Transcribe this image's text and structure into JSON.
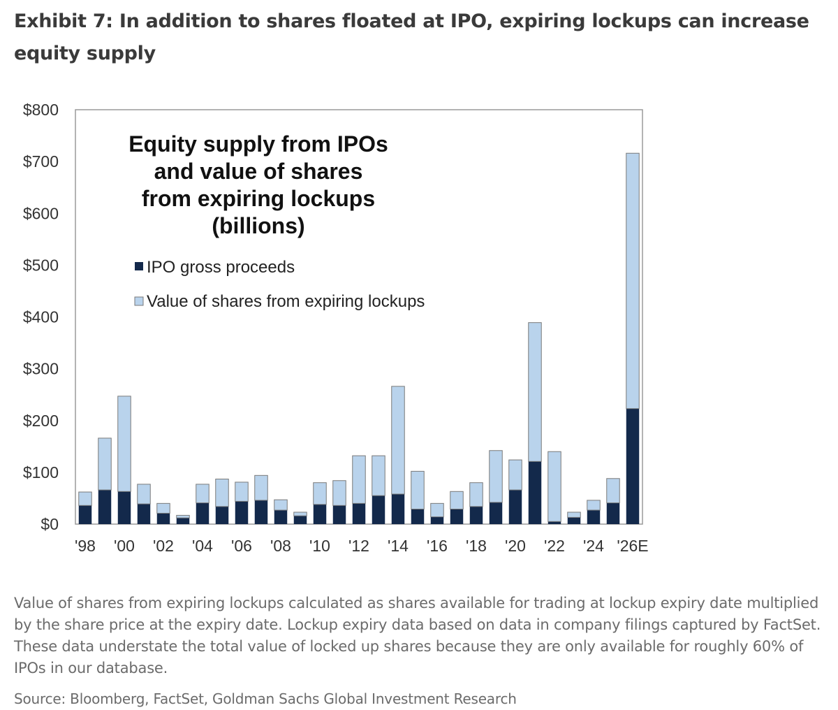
{
  "exhibit": {
    "title": "Exhibit 7: In addition to shares floated at IPO, expiring lockups can increase equity supply",
    "footnote": "Value of shares from expiring lockups calculated as shares available for trading at lockup expiry date multiplied by the share price at the expiry date. Lockup expiry data based on data in company filings captured by FactSet. These data understate the total value of locked up shares because they are only available for roughly 60% of IPOs in our database.",
    "source": "Source: Bloomberg, FactSet, Goldman Sachs Global Investment Research"
  },
  "colors": {
    "ipo": "#13294b",
    "lockup": "#b9d3ec",
    "bar_stroke": "#7a7a7a",
    "axis": "#9a9a9a"
  },
  "chart_data": {
    "type": "bar",
    "stacked": true,
    "title": [
      "Equity supply from IPOs",
      "and value of shares",
      "from expiring lockups",
      "(billions)"
    ],
    "categories": [
      "1998",
      "1999",
      "2000",
      "2001",
      "2002",
      "2003",
      "2004",
      "2005",
      "2006",
      "2007",
      "2008",
      "2009",
      "2010",
      "2011",
      "2012",
      "2013",
      "2014",
      "2015",
      "2016",
      "2017",
      "2018",
      "2019",
      "2020",
      "2021",
      "2022",
      "2023",
      "2024",
      "2025",
      "2026E"
    ],
    "x_tick_labels": [
      "'98",
      "",
      "'00",
      "",
      "'02",
      "",
      "'04",
      "",
      "'06",
      "",
      "'08",
      "",
      "'10",
      "",
      "'12",
      "",
      "'14",
      "",
      "'16",
      "",
      "'18",
      "",
      "'20",
      "",
      "'22",
      "",
      "'24",
      "",
      "'26E"
    ],
    "series": [
      {
        "name": "IPO gross proceeds",
        "values": [
          36,
          66,
          63,
          39,
          21,
          12,
          41,
          34,
          44,
          46,
          27,
          16,
          38,
          36,
          40,
          55,
          58,
          29,
          14,
          29,
          34,
          42,
          66,
          121,
          5,
          13,
          27,
          41,
          223
        ]
      },
      {
        "name": "Value of shares from expiring lockups",
        "values": [
          26,
          100,
          184,
          38,
          19,
          5,
          36,
          53,
          37,
          48,
          20,
          7,
          42,
          48,
          92,
          77,
          208,
          73,
          26,
          34,
          46,
          100,
          58,
          268,
          135,
          10,
          19,
          47,
          493
        ]
      }
    ],
    "y_tick_labels": [
      "$0",
      "$100",
      "$200",
      "$300",
      "$400",
      "$500",
      "$600",
      "$700",
      "$800"
    ],
    "ylim": [
      0,
      800
    ],
    "ytick_step": 100,
    "grid": false,
    "legend_position": "upper-left"
  }
}
